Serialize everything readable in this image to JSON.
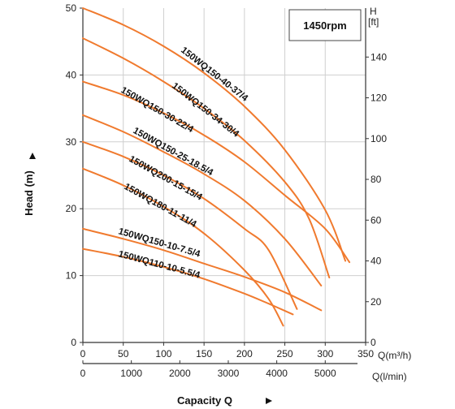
{
  "chart_data": {
    "type": "line",
    "rpm_label": "1450rpm",
    "xlabel": "Capacity Q",
    "ylabel": "Head (m)",
    "x_unit_primary": "Q(m³/h)",
    "x_unit_secondary": "Q(l/min)",
    "y2_unit_top": "H",
    "y2_unit_bottom": "[ft]",
    "xlim": [
      0,
      350
    ],
    "ylim": [
      0,
      50
    ],
    "y2lim": [
      0,
      164
    ],
    "x_ticks": [
      "0",
      "50",
      "100",
      "150",
      "200",
      "250",
      "300",
      "350"
    ],
    "x2_ticks": [
      "0",
      "1000",
      "2000",
      "3000",
      "4000",
      "5000"
    ],
    "y_ticks": [
      "0",
      "10",
      "20",
      "30",
      "40",
      "50"
    ],
    "y2_ticks": [
      "0",
      "20",
      "40",
      "60",
      "80",
      "100",
      "120",
      "140"
    ],
    "grid": true,
    "line_color": "#f07a2e",
    "series": [
      {
        "name": "150WQ150-40-37/4",
        "x": [
          0,
          50,
          100,
          150,
          200,
          250,
          300,
          325
        ],
        "y": [
          50,
          47.5,
          44.3,
          40.3,
          35.3,
          28.8,
          19.8,
          12.2
        ]
      },
      {
        "name": "150WQ150-34-30/4",
        "x": [
          0,
          50,
          100,
          150,
          200,
          250,
          280,
          305
        ],
        "y": [
          45.5,
          42.5,
          39,
          35,
          30.2,
          24,
          18.5,
          9.7
        ]
      },
      {
        "name": "150WQ150-30-22/4",
        "x": [
          0,
          50,
          100,
          150,
          200,
          250,
          300,
          330
        ],
        "y": [
          39,
          37,
          34.3,
          31,
          27,
          22,
          17,
          12
        ]
      },
      {
        "name": "150WQ150-25-18.5/4",
        "x": [
          0,
          50,
          100,
          150,
          200,
          250,
          295
        ],
        "y": [
          34,
          31.5,
          28.5,
          25.2,
          21.2,
          15.5,
          8.5
        ]
      },
      {
        "name": "150WQ200-15-15/4",
        "x": [
          0,
          50,
          100,
          150,
          200,
          230,
          265
        ],
        "y": [
          30,
          27.8,
          25,
          21.5,
          17,
          13.8,
          5
        ]
      },
      {
        "name": "150WQ180-11-11/4",
        "x": [
          0,
          50,
          100,
          150,
          200,
          230,
          248
        ],
        "y": [
          26,
          23.5,
          20.3,
          16.3,
          10.8,
          6.5,
          2.5
        ]
      },
      {
        "name": "150WQ150-10-7.5/4",
        "x": [
          0,
          50,
          100,
          150,
          200,
          250,
          295
        ],
        "y": [
          17,
          15.5,
          13.8,
          11.8,
          9.8,
          7.5,
          4.8
        ]
      },
      {
        "name": "150WQ110-10-5.5/4",
        "x": [
          0,
          50,
          100,
          150,
          200,
          230,
          260
        ],
        "y": [
          14,
          12.8,
          11.3,
          9.5,
          7.3,
          5.8,
          4.2
        ]
      }
    ]
  }
}
